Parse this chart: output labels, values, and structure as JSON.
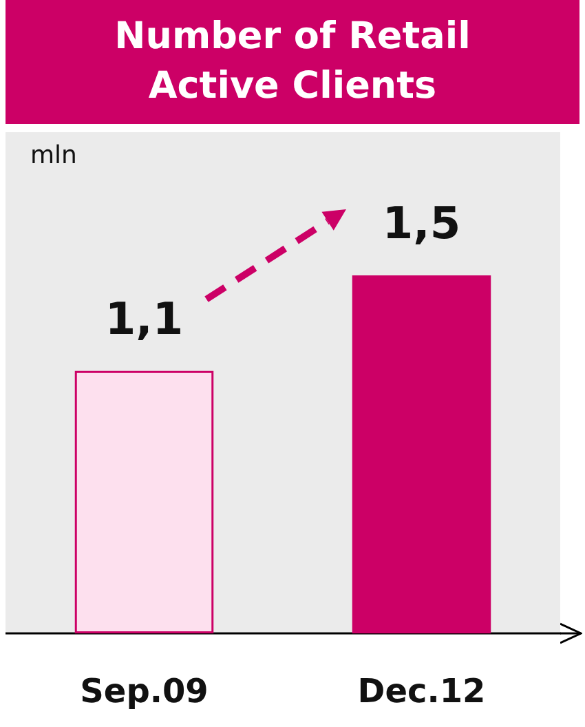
{
  "chart_data": {
    "type": "bar",
    "title": "Number of Retail Active Clients",
    "ylabel": "mln",
    "categories": [
      "Sep.09",
      "Dec.12"
    ],
    "values": [
      1.1,
      1.5
    ],
    "value_labels": [
      "1,1",
      "1,5"
    ],
    "colors": [
      "#fde0ee",
      "#cc0066"
    ],
    "ylim": [
      0,
      2.1
    ]
  }
}
